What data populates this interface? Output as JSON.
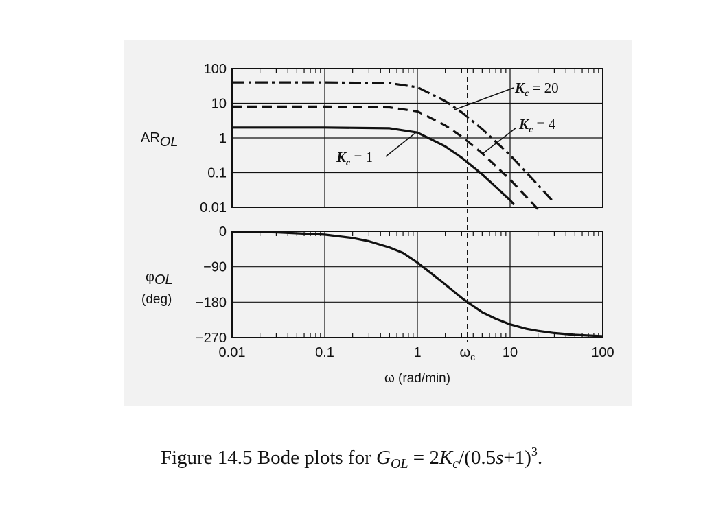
{
  "chart_data": [
    {
      "type": "line",
      "ylabel": "AR",
      "ylabel_sub": "OL",
      "x_scale": "log",
      "y_scale": "log",
      "xlim": [
        0.01,
        100
      ],
      "ylim": [
        0.01,
        100
      ],
      "y_ticks": [
        "100",
        "10",
        "1",
        "0.1",
        "0.01"
      ],
      "grid": true,
      "series": [
        {
          "style": "dash-dot",
          "x": [
            0.01,
            0.1,
            0.5,
            1,
            2,
            3,
            5,
            10,
            20,
            30
          ],
          "y": [
            40,
            40,
            38,
            29,
            11.5,
            5.5,
            1.8,
            0.32,
            0.044,
            0.0135
          ]
        },
        {
          "style": "dashed",
          "x": [
            0.01,
            0.1,
            0.5,
            1,
            2,
            3,
            5,
            10,
            20
          ],
          "y": [
            8,
            8,
            7.6,
            5.8,
            2.3,
            1.1,
            0.36,
            0.063,
            0.0088
          ]
        },
        {
          "style": "solid",
          "x": [
            0.01,
            0.1,
            0.5,
            1,
            2,
            3,
            5,
            10,
            11
          ],
          "y": [
            2,
            2,
            1.9,
            1.43,
            0.57,
            0.27,
            0.089,
            0.016,
            0.012
          ]
        }
      ],
      "annotations": [
        {
          "var": "K",
          "sub": "c",
          "text": " = 20"
        },
        {
          "var": "K",
          "sub": "c",
          "text": " = 4"
        },
        {
          "var": "K",
          "sub": "c",
          "text": " = 1"
        }
      ]
    },
    {
      "type": "line",
      "ylabel": "φ",
      "ylabel_sub": "OL",
      "ylabel2": "(deg)",
      "x_scale": "log",
      "xlim": [
        0.01,
        100
      ],
      "ylim": [
        -270,
        0
      ],
      "y_ticks": [
        "0",
        "−90",
        "−180",
        "−270"
      ],
      "x_ticks": [
        "0.01",
        "0.1",
        "1",
        "10",
        "100"
      ],
      "x_special_tick": {
        "label": "ω",
        "sub": "c",
        "value": 3.46
      },
      "xlabel": "ω (rad/min)",
      "grid": true,
      "series": [
        {
          "style": "solid",
          "x": [
            0.01,
            0.03,
            0.1,
            0.2,
            0.3,
            0.5,
            0.7,
            1,
            1.5,
            2,
            3,
            3.46,
            5,
            7,
            10,
            15,
            20,
            30,
            50,
            100
          ],
          "y": [
            -1,
            -2.6,
            -8.6,
            -17,
            -25.4,
            -41.1,
            -55.1,
            -79.6,
            -111.8,
            -135,
            -169.1,
            -180,
            -205.6,
            -222.1,
            -236.3,
            -247.7,
            -253,
            -258.5,
            -263.1,
            -266.6
          ]
        }
      ]
    }
  ],
  "caption": {
    "prefix": "Figure 14.5 Bode plots for ",
    "G": "G",
    "G_sub": "OL",
    "mid": " = 2",
    "K": "K",
    "K_sub": "c",
    "tail": "/(0.5",
    "s": "s",
    "tail2": "+1)",
    "exp": "3",
    "end": "."
  }
}
